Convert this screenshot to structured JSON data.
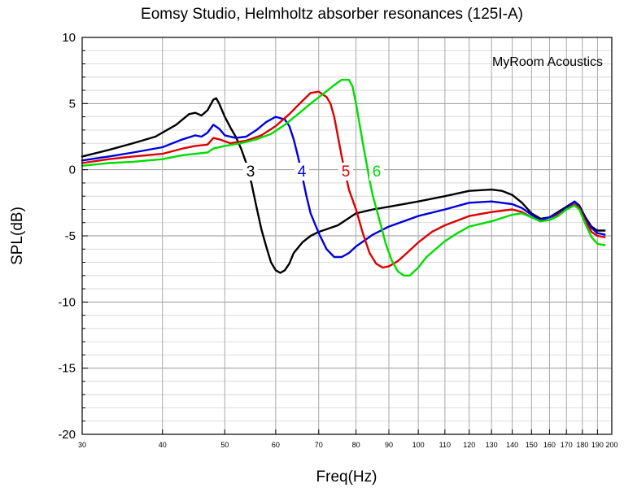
{
  "chart_data": {
    "type": "line",
    "title": "Eomsy Studio, Helmholtz absorber resonances (125I-A)",
    "xlabel": "Freq(Hz)",
    "ylabel": "SPL(dB)",
    "xscale": "log",
    "xlim": [
      30,
      200
    ],
    "ylim": [
      -20,
      10
    ],
    "grid": true,
    "legend": "none",
    "annotation": "MyRoom Acoustics",
    "x_ticks": [
      30,
      40,
      50,
      60,
      70,
      80,
      90,
      100,
      110,
      120,
      130,
      140,
      150,
      160,
      170,
      180,
      190,
      200
    ],
    "y_ticks": [
      10,
      5,
      0,
      -5,
      -10,
      -15,
      -20
    ],
    "series": [
      {
        "label": "3",
        "color": "#000000",
        "points": [
          [
            30,
            1.0
          ],
          [
            33,
            1.5
          ],
          [
            36,
            2.0
          ],
          [
            39,
            2.5
          ],
          [
            42,
            3.4
          ],
          [
            44,
            4.2
          ],
          [
            45,
            4.3
          ],
          [
            46,
            4.1
          ],
          [
            47,
            4.5
          ],
          [
            48,
            5.3
          ],
          [
            48.5,
            5.4
          ],
          [
            49,
            5.0
          ],
          [
            50,
            4.0
          ],
          [
            51,
            3.2
          ],
          [
            52,
            2.5
          ],
          [
            53,
            1.6
          ],
          [
            54,
            0.5
          ],
          [
            55,
            -1.0
          ],
          [
            56,
            -2.8
          ],
          [
            57,
            -4.5
          ],
          [
            58,
            -5.8
          ],
          [
            59,
            -7.0
          ],
          [
            60,
            -7.6
          ],
          [
            61,
            -7.8
          ],
          [
            62,
            -7.6
          ],
          [
            63,
            -7.1
          ],
          [
            64,
            -6.3
          ],
          [
            66,
            -5.5
          ],
          [
            68,
            -5.0
          ],
          [
            70,
            -4.7
          ],
          [
            75,
            -4.2
          ],
          [
            80,
            -3.3
          ],
          [
            85,
            -3.0
          ],
          [
            90,
            -2.8
          ],
          [
            100,
            -2.4
          ],
          [
            110,
            -2.0
          ],
          [
            120,
            -1.6
          ],
          [
            130,
            -1.5
          ],
          [
            135,
            -1.6
          ],
          [
            140,
            -1.9
          ],
          [
            145,
            -2.5
          ],
          [
            150,
            -3.3
          ],
          [
            155,
            -3.7
          ],
          [
            160,
            -3.6
          ],
          [
            165,
            -3.2
          ],
          [
            170,
            -2.8
          ],
          [
            175,
            -2.4
          ],
          [
            178,
            -2.7
          ],
          [
            182,
            -3.6
          ],
          [
            186,
            -4.3
          ],
          [
            190,
            -4.6
          ],
          [
            195,
            -4.6
          ]
        ]
      },
      {
        "label": "4",
        "color": "#0000dd",
        "points": [
          [
            30,
            0.7
          ],
          [
            33,
            1.0
          ],
          [
            36,
            1.3
          ],
          [
            40,
            1.7
          ],
          [
            43,
            2.3
          ],
          [
            45,
            2.6
          ],
          [
            46,
            2.5
          ],
          [
            47,
            2.8
          ],
          [
            48,
            3.4
          ],
          [
            49,
            3.1
          ],
          [
            50,
            2.6
          ],
          [
            52,
            2.4
          ],
          [
            54,
            2.5
          ],
          [
            56,
            3.0
          ],
          [
            58,
            3.6
          ],
          [
            60,
            4.0
          ],
          [
            62,
            3.8
          ],
          [
            63,
            3.3
          ],
          [
            64,
            2.3
          ],
          [
            65,
            1.0
          ],
          [
            66,
            -0.5
          ],
          [
            67,
            -2.0
          ],
          [
            68,
            -3.3
          ],
          [
            70,
            -4.8
          ],
          [
            72,
            -6.0
          ],
          [
            74,
            -6.6
          ],
          [
            76,
            -6.6
          ],
          [
            78,
            -6.3
          ],
          [
            80,
            -5.8
          ],
          [
            85,
            -4.9
          ],
          [
            90,
            -4.3
          ],
          [
            100,
            -3.5
          ],
          [
            110,
            -3.0
          ],
          [
            120,
            -2.5
          ],
          [
            130,
            -2.4
          ],
          [
            140,
            -2.6
          ],
          [
            145,
            -2.9
          ],
          [
            150,
            -3.4
          ],
          [
            155,
            -3.8
          ],
          [
            160,
            -3.6
          ],
          [
            165,
            -3.3
          ],
          [
            170,
            -2.9
          ],
          [
            175,
            -2.4
          ],
          [
            178,
            -2.8
          ],
          [
            182,
            -3.7
          ],
          [
            186,
            -4.4
          ],
          [
            190,
            -4.8
          ],
          [
            195,
            -4.9
          ]
        ]
      },
      {
        "label": "5",
        "color": "#dd0000",
        "points": [
          [
            30,
            0.5
          ],
          [
            33,
            0.8
          ],
          [
            36,
            1.0
          ],
          [
            40,
            1.2
          ],
          [
            43,
            1.6
          ],
          [
            45,
            1.8
          ],
          [
            47,
            1.9
          ],
          [
            48,
            2.4
          ],
          [
            49,
            2.3
          ],
          [
            51,
            2.0
          ],
          [
            54,
            2.2
          ],
          [
            57,
            2.6
          ],
          [
            60,
            3.3
          ],
          [
            63,
            4.2
          ],
          [
            66,
            5.2
          ],
          [
            68,
            5.8
          ],
          [
            70,
            5.9
          ],
          [
            72,
            5.5
          ],
          [
            73,
            5.0
          ],
          [
            74,
            4.0
          ],
          [
            75,
            2.5
          ],
          [
            76,
            1.0
          ],
          [
            77,
            -0.3
          ],
          [
            78,
            -1.5
          ],
          [
            80,
            -3.0
          ],
          [
            82,
            -4.8
          ],
          [
            84,
            -6.3
          ],
          [
            86,
            -7.1
          ],
          [
            88,
            -7.4
          ],
          [
            90,
            -7.3
          ],
          [
            93,
            -6.9
          ],
          [
            96,
            -6.3
          ],
          [
            100,
            -5.5
          ],
          [
            105,
            -4.7
          ],
          [
            110,
            -4.2
          ],
          [
            120,
            -3.5
          ],
          [
            130,
            -3.2
          ],
          [
            140,
            -3.0
          ],
          [
            145,
            -3.2
          ],
          [
            150,
            -3.6
          ],
          [
            155,
            -3.9
          ],
          [
            160,
            -3.8
          ],
          [
            165,
            -3.4
          ],
          [
            170,
            -3.0
          ],
          [
            175,
            -2.6
          ],
          [
            178,
            -2.9
          ],
          [
            182,
            -3.9
          ],
          [
            186,
            -4.7
          ],
          [
            190,
            -5.0
          ],
          [
            195,
            -5.1
          ]
        ]
      },
      {
        "label": "6",
        "color": "#00dd00",
        "points": [
          [
            30,
            0.3
          ],
          [
            33,
            0.5
          ],
          [
            36,
            0.6
          ],
          [
            40,
            0.8
          ],
          [
            43,
            1.1
          ],
          [
            45,
            1.2
          ],
          [
            47,
            1.3
          ],
          [
            48,
            1.6
          ],
          [
            50,
            1.8
          ],
          [
            53,
            2.0
          ],
          [
            56,
            2.3
          ],
          [
            59,
            2.7
          ],
          [
            62,
            3.4
          ],
          [
            65,
            4.2
          ],
          [
            68,
            5.0
          ],
          [
            71,
            5.7
          ],
          [
            74,
            6.4
          ],
          [
            76,
            6.8
          ],
          [
            78,
            6.8
          ],
          [
            79,
            6.3
          ],
          [
            80,
            5.0
          ],
          [
            81,
            3.5
          ],
          [
            82,
            2.0
          ],
          [
            83,
            0.6
          ],
          [
            84,
            -0.8
          ],
          [
            85,
            -2.0
          ],
          [
            87,
            -3.8
          ],
          [
            89,
            -5.6
          ],
          [
            91,
            -6.9
          ],
          [
            93,
            -7.7
          ],
          [
            95,
            -8.0
          ],
          [
            97,
            -8.0
          ],
          [
            100,
            -7.4
          ],
          [
            103,
            -6.6
          ],
          [
            107,
            -5.9
          ],
          [
            110,
            -5.4
          ],
          [
            115,
            -4.8
          ],
          [
            120,
            -4.3
          ],
          [
            130,
            -3.9
          ],
          [
            140,
            -3.4
          ],
          [
            145,
            -3.3
          ],
          [
            150,
            -3.6
          ],
          [
            155,
            -3.9
          ],
          [
            160,
            -3.8
          ],
          [
            165,
            -3.5
          ],
          [
            170,
            -3.0
          ],
          [
            175,
            -2.7
          ],
          [
            178,
            -3.0
          ],
          [
            182,
            -4.1
          ],
          [
            186,
            -5.1
          ],
          [
            190,
            -5.6
          ],
          [
            195,
            -5.7
          ]
        ]
      }
    ]
  }
}
